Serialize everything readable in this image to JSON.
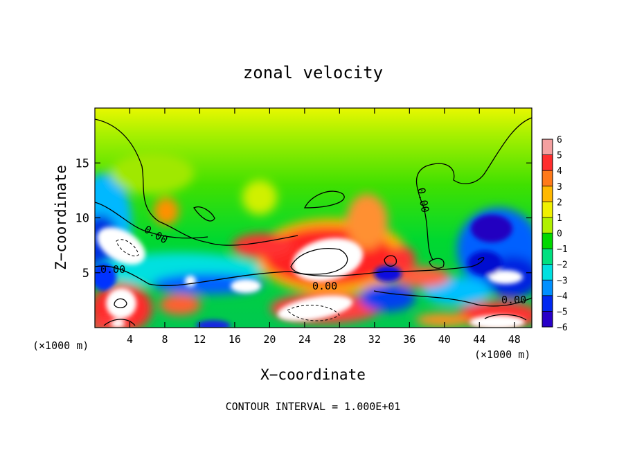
{
  "chart_data": {
    "type": "heatmap",
    "title": "zonal velocity",
    "xlabel": "X−coordinate",
    "ylabel": "Z−coordinate",
    "x_unit_left": "(×1000 m)",
    "x_unit_right": "(×1000 m)",
    "footer": "CONTOUR INTERVAL = 1.000E+01",
    "xlim": [
      0,
      50
    ],
    "ylim": [
      0,
      20
    ],
    "x_ticks": [
      "4",
      "8",
      "12",
      "16",
      "20",
      "24",
      "28",
      "32",
      "36",
      "40",
      "44",
      "48"
    ],
    "y_ticks": [
      "5",
      "10",
      "15"
    ],
    "colorbar": {
      "labels": [
        "6",
        "5",
        "4",
        "3",
        "2",
        "1",
        "0",
        "−1",
        "−2",
        "−3",
        "−4",
        "−5",
        "−6"
      ],
      "colors": [
        "#f4a0a0",
        "#ff2d2d",
        "#ff7a1a",
        "#ffb800",
        "#f0f000",
        "#b0f000",
        "#00d800",
        "#00e080",
        "#00e0e0",
        "#0090ff",
        "#0028f0",
        "#2800c8",
        "#8000c8"
      ]
    },
    "contour_labels": [
      "0.00",
      "0.00",
      "0.00",
      "0.00",
      "0.00"
    ]
  }
}
